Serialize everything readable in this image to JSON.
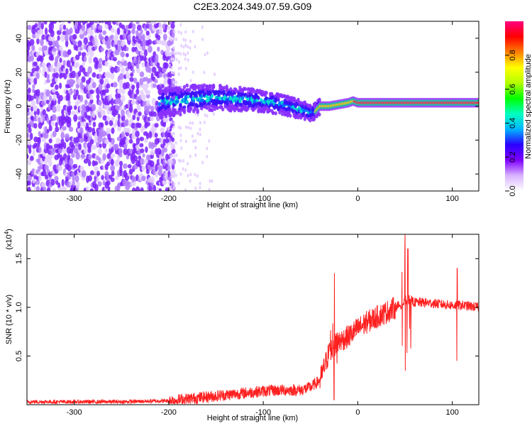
{
  "title": "C2E3.2024.349.07.59.G09",
  "chart_data": [
    {
      "type": "heatmap",
      "title": "",
      "xlabel": "Height of straight line (km)",
      "ylabel": "Frequency (Hz)",
      "xlim": [
        -350,
        128
      ],
      "ylim": [
        -50,
        50
      ],
      "xticks": [
        -300,
        -200,
        -100,
        0,
        100
      ],
      "yticks": [
        -40,
        -20,
        0,
        20,
        40
      ],
      "colorbar": {
        "label": "Normalized spectral amplitude",
        "range": [
          0,
          1
        ],
        "ticks": [
          "0.0",
          "0.2",
          "0.4",
          "0.6",
          "0.8"
        ],
        "colors": [
          "#ffffff",
          "#d9b3ff",
          "#7f00ff",
          "#2b00ff",
          "#00b4ff",
          "#00ffc0",
          "#00ff00",
          "#b4ff00",
          "#ffff00",
          "#ff8000",
          "#ff0000",
          "#ff0080"
        ]
      },
      "signal_track": {
        "x": [
          -210,
          -180,
          -150,
          -120,
          -100,
          -80,
          -60,
          -50,
          -45,
          -40,
          -30,
          -20,
          -10,
          -5,
          0,
          20,
          40,
          60,
          80,
          100,
          128
        ],
        "frequency": [
          2,
          4,
          5,
          4,
          3,
          1,
          -2,
          -4,
          -3,
          0,
          0,
          1,
          2,
          3,
          2,
          2,
          2,
          2,
          2,
          2,
          2
        ]
      },
      "regions": [
        {
          "x": [
            -350,
            -200
          ],
          "description_level": 0.15
        },
        {
          "x": [
            -200,
            -40
          ],
          "description_level": 0.35
        },
        {
          "x": [
            -40,
            128
          ],
          "description_level": 0.95
        }
      ]
    },
    {
      "type": "line",
      "title": "",
      "xlabel": "Height of straight line (km)",
      "ylabel": "SNR (10 * v/v)",
      "yscale_label": "(x10",
      "yscale_exp": "4",
      "yscale_close": ")",
      "xlim": [
        -350,
        128
      ],
      "ylim": [
        0,
        1.75
      ],
      "xticks": [
        -300,
        -200,
        -100,
        0,
        100
      ],
      "yticks": [
        "0.5",
        "1.0",
        "1.5"
      ],
      "color": "#ff2020",
      "series": [
        {
          "x": [
            -350,
            -300,
            -250,
            -200,
            -180,
            -160,
            -140,
            -120,
            -100,
            -80,
            -60,
            -50,
            -40,
            -35,
            -30,
            -25,
            -20,
            -10,
            0,
            10,
            20,
            30,
            40,
            50,
            55,
            60,
            70,
            80,
            90,
            100,
            105,
            110,
            120,
            128
          ],
          "values": [
            0.03,
            0.03,
            0.03,
            0.04,
            0.06,
            0.08,
            0.1,
            0.12,
            0.14,
            0.15,
            0.15,
            0.18,
            0.25,
            0.4,
            0.55,
            0.6,
            0.65,
            0.7,
            0.78,
            0.85,
            0.9,
            0.95,
            1.0,
            1.05,
            1.08,
            1.05,
            1.05,
            1.04,
            1.03,
            1.02,
            1.02,
            1.02,
            1.01,
            1.0
          ]
        }
      ],
      "spikes": [
        {
          "x": -25,
          "peak": 1.35,
          "low": 0.05
        },
        {
          "x": 50,
          "peak": 1.75,
          "low": 0.35
        },
        {
          "x": 53,
          "peak": 1.6,
          "low": 0.4
        },
        {
          "x": 105,
          "peak": 1.4,
          "low": 0.45
        }
      ]
    }
  ]
}
